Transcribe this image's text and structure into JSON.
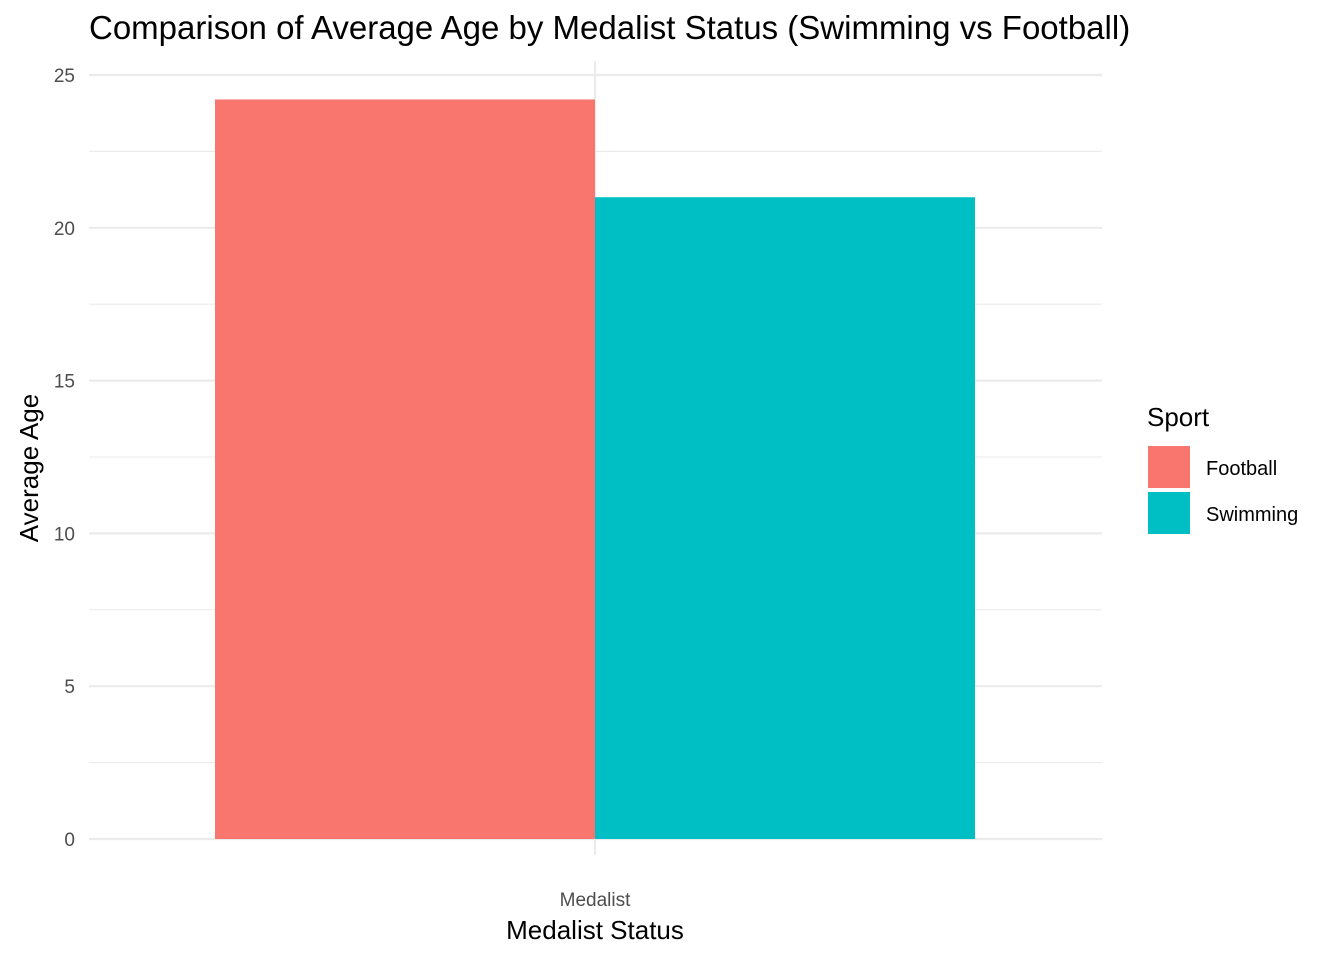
{
  "chart_data": {
    "type": "bar",
    "title": "Comparison of Average Age by Medalist Status (Swimming vs Football)",
    "xlabel": "Medalist Status",
    "ylabel": "Average Age",
    "categories": [
      "Medalist"
    ],
    "series": [
      {
        "name": "Football",
        "values": [
          24.2
        ],
        "color": "#F8766D"
      },
      {
        "name": "Swimming",
        "values": [
          21.0
        ],
        "color": "#00BFC4"
      }
    ],
    "ylim": [
      0,
      25
    ],
    "yticks": [
      "0",
      "5",
      "10",
      "15",
      "20",
      "25"
    ],
    "grid": true,
    "legend": {
      "title": "Sport",
      "position": "right"
    }
  }
}
